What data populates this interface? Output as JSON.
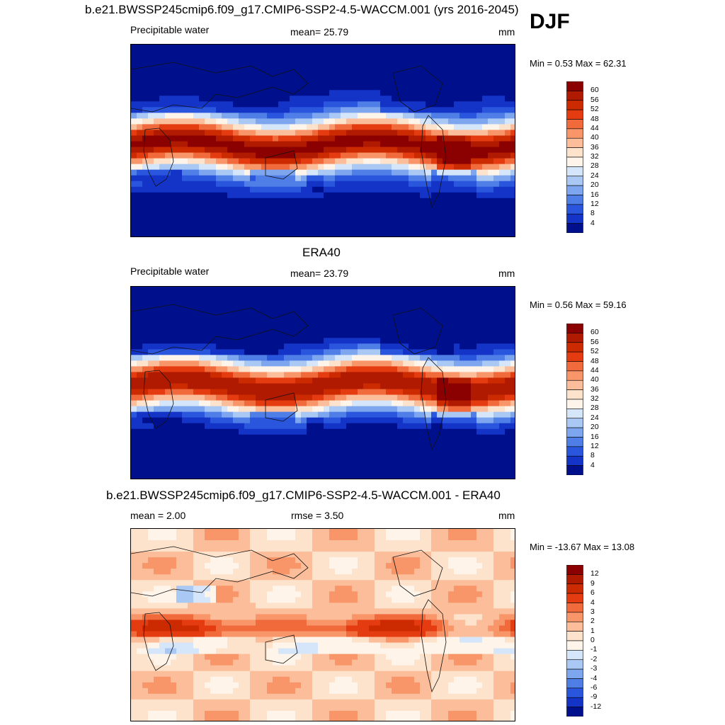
{
  "season": "DJF",
  "panels": [
    {
      "title": "b.e21.BWSSP245cmip6.f09_g17.CMIP6-SSP2-4.5-WACCM.001 (yrs 2016-2045)",
      "variable": "Precipitable water",
      "stat_text": "mean=  25.79",
      "units": "mm",
      "minmax": "Min =   0.53 Max =  62.31",
      "colorbar": {
        "labels": [
          "60",
          "56",
          "52",
          "48",
          "44",
          "40",
          "36",
          "32",
          "28",
          "24",
          "20",
          "16",
          "12",
          "8",
          "4"
        ],
        "colors": [
          "#8b0000",
          "#b01a00",
          "#cc2a00",
          "#e43c10",
          "#f06a3c",
          "#f8966a",
          "#fcbe9a",
          "#fde2cc",
          "#fff4ea",
          "#d6e6fa",
          "#aac8f4",
          "#7ea6ee",
          "#4e7ee6",
          "#2a56de",
          "#1434c8",
          "#00108c"
        ]
      }
    },
    {
      "title": "ERA40",
      "variable": "Precipitable water",
      "stat_text": "mean=  23.79",
      "units": "mm",
      "minmax": "Min =   0.56 Max =  59.16",
      "colorbar": {
        "labels": [
          "60",
          "56",
          "52",
          "48",
          "44",
          "40",
          "36",
          "32",
          "28",
          "24",
          "20",
          "16",
          "12",
          "8",
          "4"
        ],
        "colors": [
          "#8b0000",
          "#b01a00",
          "#cc2a00",
          "#e43c10",
          "#f06a3c",
          "#f8966a",
          "#fcbe9a",
          "#fde2cc",
          "#fff4ea",
          "#d6e6fa",
          "#aac8f4",
          "#7ea6ee",
          "#4e7ee6",
          "#2a56de",
          "#1434c8",
          "#00108c"
        ]
      }
    },
    {
      "title": "b.e21.BWSSP245cmip6.f09_g17.CMIP6-SSP2-4.5-WACCM.001 - ERA40",
      "stat_text": "mean =   2.00",
      "stat_text2": "rmse =   3.50",
      "units": "mm",
      "minmax": "Min = -13.67 Max =  13.08",
      "colorbar": {
        "labels": [
          "12",
          "9",
          "6",
          "4",
          "3",
          "2",
          "1",
          "0",
          "-1",
          "-2",
          "-3",
          "-4",
          "-6",
          "-9",
          "-12"
        ],
        "colors": [
          "#8b0000",
          "#b01a00",
          "#cc2a00",
          "#e43c10",
          "#f06a3c",
          "#f8966a",
          "#fcbe9a",
          "#fde2cc",
          "#fff4ea",
          "#d6e6fa",
          "#aac8f4",
          "#7ea6ee",
          "#4e7ee6",
          "#2a56de",
          "#1434c8",
          "#00108c"
        ]
      }
    }
  ]
}
